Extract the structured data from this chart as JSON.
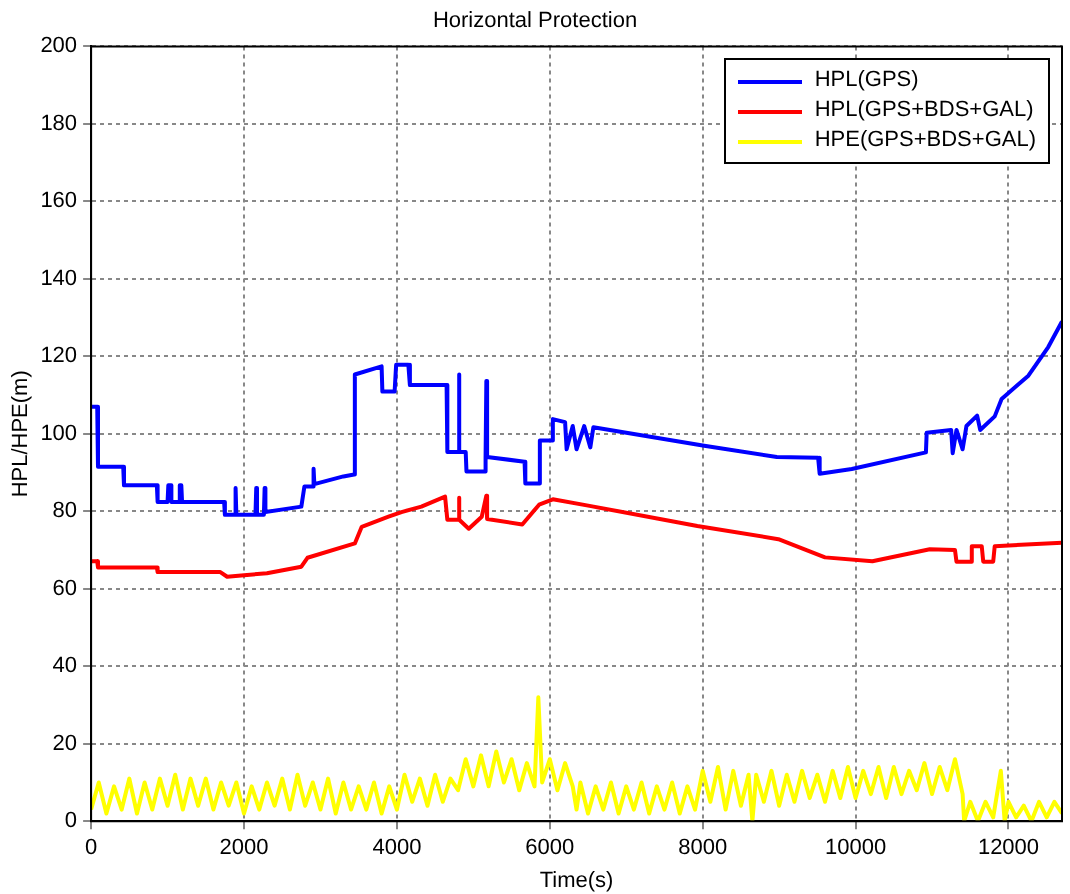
{
  "chart_data": {
    "type": "line",
    "title": "Horizontal Protection",
    "xlabel": "Time(s)",
    "ylabel": "HPL/HPE(m)",
    "xlim": [
      0,
      12700
    ],
    "xticks": [
      0,
      2000,
      4000,
      6000,
      8000,
      10000,
      12000
    ],
    "ylim": [
      0,
      200
    ],
    "yticks": [
      0,
      20,
      40,
      60,
      80,
      100,
      120,
      140,
      160,
      180,
      200
    ],
    "grid": true,
    "legend": "top right",
    "marker": "none",
    "line_style": "solid",
    "series": [
      {
        "name": "HPL(GPS)",
        "color": "#0000ff",
        "x": [
          0,
          80,
          90,
          420,
          430,
          860,
          870,
          1000,
          1010,
          1040,
          1050,
          1150,
          1160,
          1180,
          1190,
          1740,
          1750,
          1880,
          1890,
          1900,
          2150,
          2160,
          2170,
          2260,
          2270,
          2280,
          2750,
          2790,
          2900,
          2910,
          2920,
          3300,
          3440,
          3450,
          3800,
          3810,
          3970,
          3990,
          4150,
          4170,
          4650,
          4660,
          4800,
          4810,
          4820,
          4900,
          4910,
          5150,
          5160,
          5170,
          5180,
          5670,
          5680,
          5860,
          5870,
          6030,
          6040,
          6200,
          6220,
          6300,
          6350,
          6450,
          6530,
          6570,
          8020,
          8970,
          9510,
          9530,
          9950,
          10920,
          10930,
          11250,
          11270,
          11320,
          11400,
          11450,
          11590,
          11630,
          11820,
          11910,
          12260,
          12520,
          12700
        ],
        "values": [
          107,
          107,
          91.5,
          91.5,
          86.7,
          86.7,
          82.4,
          82.4,
          86.7,
          86.7,
          82.4,
          82.4,
          86.7,
          86.7,
          82.4,
          82.4,
          79.1,
          79.1,
          86,
          79.1,
          79.1,
          86,
          79.1,
          79.1,
          86,
          79.8,
          81.2,
          86.4,
          86.4,
          91,
          87,
          89,
          89.5,
          115.3,
          117.4,
          110.9,
          110.9,
          117.8,
          117.8,
          112.6,
          112.6,
          95.3,
          95.3,
          115.3,
          95.3,
          95.3,
          90.3,
          90.3,
          94,
          113.6,
          94,
          92.8,
          87.2,
          87.2,
          98.3,
          98.3,
          103.8,
          103,
          96,
          102,
          96,
          102,
          96.5,
          101.7,
          96.9,
          94,
          93.8,
          89.7,
          90.9,
          95.2,
          100.3,
          101,
          95,
          101,
          96,
          102,
          104.7,
          101,
          104.5,
          109,
          115,
          122.4,
          129
        ]
      },
      {
        "name": "HPL(GPS+BDS+GAL)",
        "color": "#ff0000",
        "x": [
          0,
          80,
          90,
          860,
          870,
          1690,
          1780,
          2000,
          2300,
          2750,
          2830,
          3450,
          3540,
          3890,
          4060,
          4320,
          4630,
          4660,
          4800,
          4810,
          4820,
          4940,
          5110,
          5170,
          5180,
          5640,
          5860,
          6040,
          6520,
          7930,
          8990,
          9600,
          10220,
          10970,
          11300,
          11320,
          11500,
          11520,
          11650,
          11670,
          11800,
          11820,
          12700
        ],
        "values": [
          67.1,
          67.1,
          65.5,
          65.5,
          64.3,
          64.3,
          63.1,
          63.5,
          64,
          65.7,
          68,
          71.7,
          76,
          78.6,
          79.8,
          81.2,
          83.8,
          77.8,
          77.8,
          83.5,
          77.8,
          75.5,
          78.6,
          84,
          78,
          76.6,
          81.7,
          83.1,
          81.4,
          76.2,
          72.8,
          68.1,
          67.1,
          70.2,
          70,
          67,
          67,
          71,
          71,
          67,
          67,
          71,
          71.9
        ]
      },
      {
        "name": "HPE(GPS+BDS+GAL)",
        "color": "#ffff00",
        "x": [
          0,
          100,
          200,
          300,
          400,
          500,
          600,
          700,
          800,
          900,
          1000,
          1100,
          1200,
          1300,
          1400,
          1500,
          1600,
          1700,
          1800,
          1900,
          2000,
          2100,
          2200,
          2300,
          2400,
          2500,
          2600,
          2700,
          2800,
          2900,
          3000,
          3100,
          3200,
          3300,
          3400,
          3500,
          3600,
          3700,
          3800,
          3900,
          4000,
          4100,
          4200,
          4300,
          4400,
          4500,
          4600,
          4700,
          4800,
          4900,
          5000,
          5100,
          5200,
          5300,
          5400,
          5500,
          5600,
          5700,
          5800,
          5850,
          5900,
          6000,
          6100,
          6200,
          6300,
          6350,
          6400,
          6500,
          6600,
          6700,
          6800,
          6900,
          7000,
          7100,
          7200,
          7300,
          7400,
          7500,
          7600,
          7700,
          7800,
          7900,
          8000,
          8100,
          8200,
          8300,
          8400,
          8500,
          8600,
          8650,
          8700,
          8800,
          8900,
          9000,
          9100,
          9200,
          9300,
          9400,
          9500,
          9600,
          9700,
          9800,
          9900,
          10000,
          10100,
          10200,
          10300,
          10400,
          10500,
          10600,
          10700,
          10800,
          10900,
          11000,
          11100,
          11200,
          11300,
          11400,
          11420,
          11500,
          11600,
          11700,
          11800,
          11900,
          11950,
          12000,
          12100,
          12200,
          12300,
          12400,
          12500,
          12600,
          12700
        ],
        "values": [
          3,
          10,
          2,
          9,
          3,
          11,
          2,
          10,
          3,
          11,
          4,
          12,
          3,
          11,
          4,
          11,
          3,
          10,
          4,
          10,
          2,
          9,
          3,
          10,
          4,
          11,
          3,
          12,
          4,
          10,
          3,
          11,
          2,
          10,
          3,
          9,
          3,
          10,
          2,
          9,
          3,
          12,
          5,
          11,
          4,
          12,
          5,
          11,
          8,
          16,
          9,
          17,
          9,
          18,
          10,
          16,
          8,
          15,
          9,
          32,
          10,
          16,
          8,
          15,
          9,
          3,
          10,
          2,
          9,
          3,
          10,
          2,
          9,
          3,
          10,
          2,
          9,
          3,
          10,
          2,
          9,
          3,
          13,
          5,
          14,
          3,
          13,
          4,
          12,
          0,
          12,
          5,
          13,
          4,
          12,
          5,
          13,
          6,
          12,
          5,
          13,
          6,
          14,
          6,
          13,
          7,
          14,
          6,
          14,
          7,
          13,
          8,
          15,
          7,
          14,
          8,
          16,
          7,
          0,
          5,
          0,
          5,
          1,
          13,
          0,
          5,
          1,
          4,
          0,
          5,
          1,
          5,
          2
        ]
      }
    ]
  }
}
